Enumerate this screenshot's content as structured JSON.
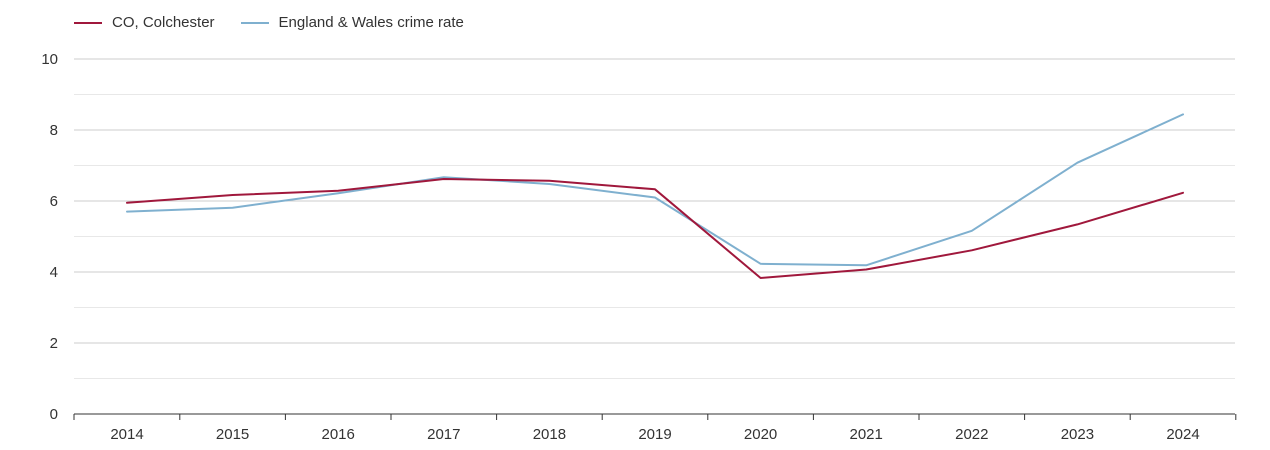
{
  "chart_data": {
    "type": "line",
    "title": "",
    "xlabel": "",
    "ylabel": "",
    "x": [
      2014,
      2015,
      2016,
      2017,
      2018,
      2019,
      2020,
      2021,
      2022,
      2023,
      2024
    ],
    "x_tick_labels": [
      "2014",
      "2015",
      "2016",
      "2017",
      "2018",
      "2019",
      "2020",
      "2021",
      "2022",
      "2023",
      "2024"
    ],
    "ylim": [
      0,
      10
    ],
    "y_ticks": [
      0,
      2,
      4,
      6,
      8,
      10
    ],
    "y_tick_labels": [
      "0",
      "2",
      "4",
      "6",
      "8",
      "10"
    ],
    "grid": true,
    "legend_position": "top-left",
    "series": [
      {
        "name": "CO, Colchester",
        "color": "#a0183c",
        "values": [
          5.95,
          6.17,
          6.29,
          6.62,
          6.57,
          6.33,
          3.83,
          4.07,
          4.61,
          5.34,
          6.23
        ]
      },
      {
        "name": "England & Wales crime rate",
        "color": "#7fb0cf",
        "values": [
          5.7,
          5.81,
          6.22,
          6.67,
          6.48,
          6.1,
          4.23,
          4.19,
          5.16,
          7.08,
          8.44
        ]
      }
    ]
  }
}
